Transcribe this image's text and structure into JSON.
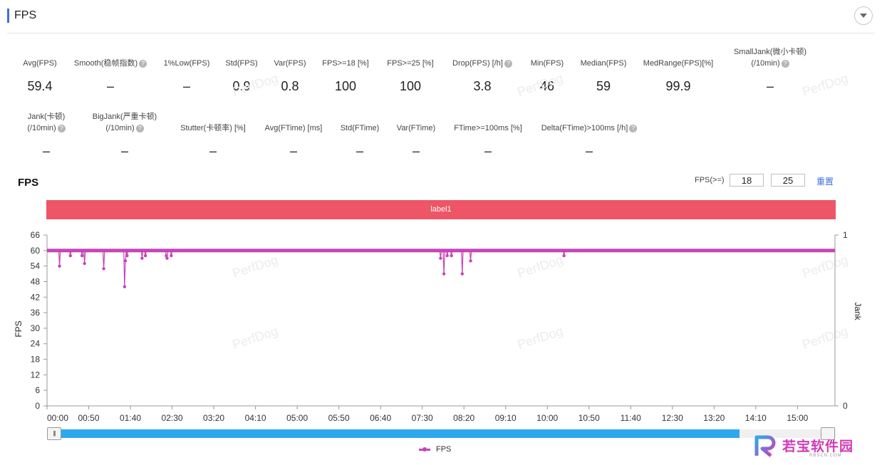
{
  "header": {
    "title": "FPS"
  },
  "metrics_row1": [
    {
      "label": "Avg(FPS)",
      "value": "59.4",
      "help": false
    },
    {
      "label": "Smooth(稳帧指数)",
      "value": "–",
      "help": true
    },
    {
      "label": "1%Low(FPS)",
      "value": "–",
      "help": false
    },
    {
      "label": "Std(FPS)",
      "value": "0.9",
      "help": false
    },
    {
      "label": "Var(FPS)",
      "value": "0.8",
      "help": false
    },
    {
      "label": "FPS>=18 [%]",
      "value": "100",
      "help": false
    },
    {
      "label": "FPS>=25 [%]",
      "value": "100",
      "help": false
    },
    {
      "label": "Drop(FPS) [/h]",
      "value": "3.8",
      "help": true
    },
    {
      "label": "Min(FPS)",
      "value": "46",
      "help": false
    },
    {
      "label": "Median(FPS)",
      "value": "59",
      "help": false
    },
    {
      "label": "MedRange(FPS)[%]",
      "value": "99.9",
      "help": false
    },
    {
      "label": "SmallJank(微小卡顿)",
      "label2": "(/10min)",
      "value": "–",
      "help": true
    }
  ],
  "metrics_row2": [
    {
      "label": "Jank(卡顿)",
      "label2": "(/10min)",
      "value": "–",
      "help": true
    },
    {
      "label": "BigJank(严重卡顿)",
      "label2": "(/10min)",
      "value": "–",
      "help": true
    },
    {
      "label": "Stutter(卡顿率) [%]",
      "value": "–",
      "help": false
    },
    {
      "label": "Avg(FTime) [ms]",
      "value": "–",
      "help": false
    },
    {
      "label": "Std(FTime)",
      "value": "–",
      "help": false
    },
    {
      "label": "Var(FTime)",
      "value": "–",
      "help": false
    },
    {
      "label": "FTime>=100ms [%]",
      "value": "–",
      "help": false
    },
    {
      "label": "Delta(FTime)>100ms [/h]",
      "value": "–",
      "help": true
    }
  ],
  "chart_controls": {
    "title": "FPS",
    "fps_ge_label": "FPS(>=)",
    "threshold1": "18",
    "threshold2": "25",
    "reset_label": "重置"
  },
  "label_band": "label1",
  "watermark": "PerfDog",
  "logo": {
    "text": "若宝软件园",
    "sub": "RBSCN.COM"
  },
  "colors": {
    "series": "#c744b8",
    "band": "#ee5566",
    "slider": "#2ea8ee",
    "accent": "#3b6fe0"
  },
  "chart_data": {
    "type": "line",
    "title": "",
    "xlabel": "",
    "ylabel": "FPS",
    "y2label": "Jank",
    "ylim": [
      0,
      66
    ],
    "yticks": [
      0,
      6,
      12,
      18,
      24,
      30,
      36,
      42,
      48,
      54,
      60,
      66
    ],
    "y2lim": [
      0,
      1
    ],
    "y2ticks": [
      0,
      1
    ],
    "xlim_seconds": [
      0,
      945
    ],
    "xticks": [
      "00:00",
      "00:50",
      "01:40",
      "02:30",
      "03:20",
      "04:10",
      "05:00",
      "05:50",
      "06:40",
      "07:30",
      "08:20",
      "09:10",
      "10:00",
      "10:50",
      "11:40",
      "12:30",
      "13:20",
      "14:10",
      "15:00"
    ],
    "legend": {
      "position": "bottom",
      "entries": [
        "FPS"
      ]
    },
    "grid": false,
    "series": [
      {
        "name": "FPS",
        "baseline": 60,
        "dips": [
          {
            "t": 15,
            "v": 54
          },
          {
            "t": 28,
            "v": 58
          },
          {
            "t": 42,
            "v": 58
          },
          {
            "t": 45,
            "v": 55
          },
          {
            "t": 68,
            "v": 53
          },
          {
            "t": 93,
            "v": 46
          },
          {
            "t": 94,
            "v": 56
          },
          {
            "t": 96,
            "v": 58
          },
          {
            "t": 114,
            "v": 57
          },
          {
            "t": 118,
            "v": 58
          },
          {
            "t": 143,
            "v": 58
          },
          {
            "t": 144,
            "v": 57
          },
          {
            "t": 149,
            "v": 58
          },
          {
            "t": 472,
            "v": 57
          },
          {
            "t": 476,
            "v": 51
          },
          {
            "t": 480,
            "v": 58
          },
          {
            "t": 485,
            "v": 58
          },
          {
            "t": 498,
            "v": 51
          },
          {
            "t": 508,
            "v": 56
          },
          {
            "t": 620,
            "v": 58
          }
        ]
      }
    ]
  }
}
